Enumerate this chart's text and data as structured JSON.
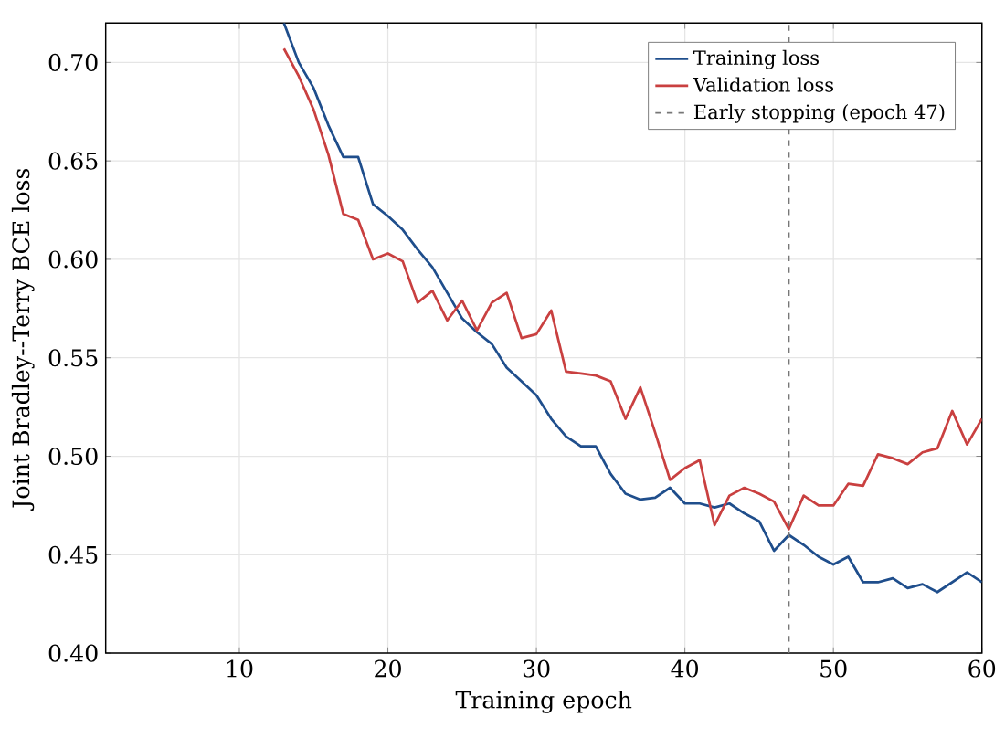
{
  "chart_data": {
    "type": "line",
    "xlabel": "Training epoch",
    "ylabel": "Joint Bradley--Terry BCE loss",
    "xlim": [
      1,
      60
    ],
    "xticks": [
      10,
      20,
      30,
      40,
      50,
      60
    ],
    "ylim": [
      0.4,
      0.72
    ],
    "yticks": [
      {
        "value": 0.4,
        "label": "0.40"
      },
      {
        "value": 0.45,
        "label": "0.45"
      },
      {
        "value": 0.5,
        "label": "0.50"
      },
      {
        "value": 0.55,
        "label": "0.55"
      },
      {
        "value": 0.6,
        "label": "0.60"
      },
      {
        "value": 0.65,
        "label": "0.65"
      },
      {
        "value": 0.7,
        "label": "0.70"
      }
    ],
    "grid": true,
    "legend": "top right",
    "marker": "none",
    "line_style": "solid",
    "series": [
      {
        "name": "Training loss",
        "color": "#1f4e8c",
        "x": [
          13,
          14,
          15,
          16,
          17,
          18,
          19,
          20,
          21,
          22,
          23,
          24,
          25,
          26,
          27,
          28,
          29,
          30,
          31,
          32,
          33,
          34,
          35,
          36,
          37,
          38,
          39,
          40,
          41,
          42,
          43,
          44,
          45,
          46,
          47,
          48,
          49,
          50,
          51,
          52,
          53,
          54,
          55,
          56,
          57,
          58,
          59,
          60
        ],
        "values": [
          0.72,
          0.7,
          0.687,
          0.668,
          0.652,
          0.652,
          0.628,
          0.622,
          0.615,
          0.605,
          0.596,
          0.583,
          0.57,
          0.563,
          0.557,
          0.545,
          0.538,
          0.531,
          0.519,
          0.51,
          0.505,
          0.505,
          0.491,
          0.481,
          0.478,
          0.479,
          0.484,
          0.476,
          0.476,
          0.474,
          0.476,
          0.471,
          0.467,
          0.452,
          0.46,
          0.455,
          0.449,
          0.445,
          0.449,
          0.436,
          0.436,
          0.438,
          0.433,
          0.435,
          0.431,
          0.436,
          0.441,
          0.436
        ]
      },
      {
        "name": "Validation loss",
        "color": "#c94040",
        "x": [
          13,
          14,
          15,
          16,
          17,
          18,
          19,
          20,
          21,
          22,
          23,
          24,
          25,
          26,
          27,
          28,
          29,
          30,
          31,
          32,
          33,
          34,
          35,
          36,
          37,
          38,
          39,
          40,
          41,
          42,
          43,
          44,
          45,
          46,
          47,
          48,
          49,
          50,
          51,
          52,
          53,
          54,
          55,
          56,
          57,
          58,
          59,
          60
        ],
        "values": [
          0.707,
          0.693,
          0.676,
          0.653,
          0.623,
          0.62,
          0.6,
          0.603,
          0.599,
          0.578,
          0.584,
          0.569,
          0.579,
          0.564,
          0.578,
          0.583,
          0.56,
          0.562,
          0.574,
          0.543,
          0.542,
          0.541,
          0.538,
          0.519,
          0.535,
          0.512,
          0.488,
          0.494,
          0.498,
          0.465,
          0.48,
          0.484,
          0.481,
          0.477,
          0.463,
          0.48,
          0.475,
          0.475,
          0.486,
          0.485,
          0.501,
          0.499,
          0.496,
          0.502,
          0.504,
          0.523,
          0.506,
          0.519
        ]
      }
    ],
    "ref_lines": [
      {
        "axis": "x",
        "value": 47,
        "label": "Early stopping (epoch 47)",
        "color": "#777777",
        "line_style": "dashed"
      }
    ]
  }
}
